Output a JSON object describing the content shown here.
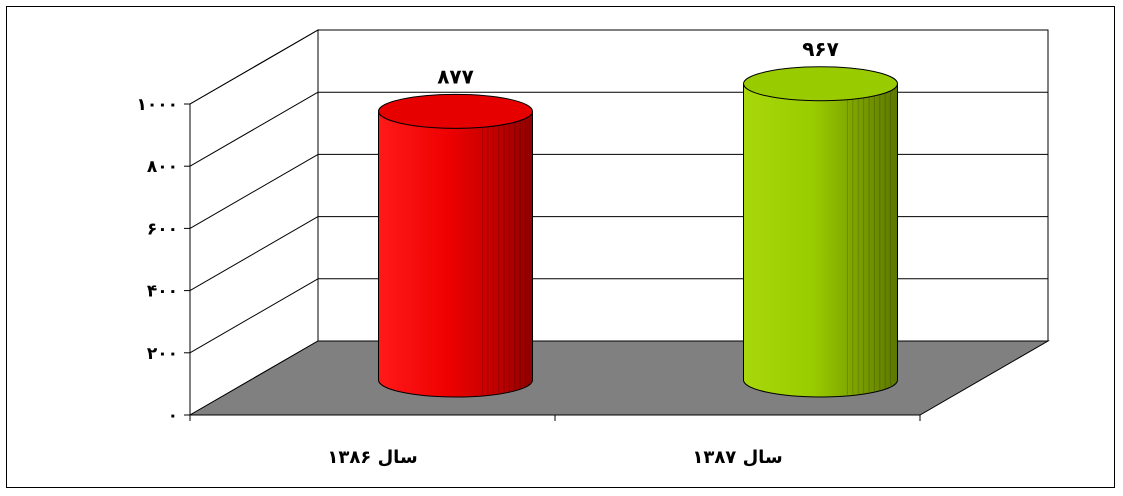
{
  "chart_data": {
    "type": "bar",
    "shape": "cylinder-3d",
    "categories": [
      "سال ۱۳۸۶",
      "سال ۱۳۸۷"
    ],
    "values": [
      877,
      967
    ],
    "value_labels": [
      "۸۷۷",
      "۹۶۷"
    ],
    "bar_colors": [
      "#e60000",
      "#99cc00"
    ],
    "ylim": [
      0,
      1000
    ],
    "y_ticks": [
      0,
      200,
      400,
      600,
      800,
      1000
    ],
    "y_tick_labels": [
      "۰",
      "۲۰۰",
      "۴۰۰",
      "۶۰۰",
      "۸۰۰",
      "۱۰۰۰"
    ],
    "grid": true,
    "floor_color": "#808080",
    "title": "",
    "xlabel": "",
    "ylabel": ""
  }
}
